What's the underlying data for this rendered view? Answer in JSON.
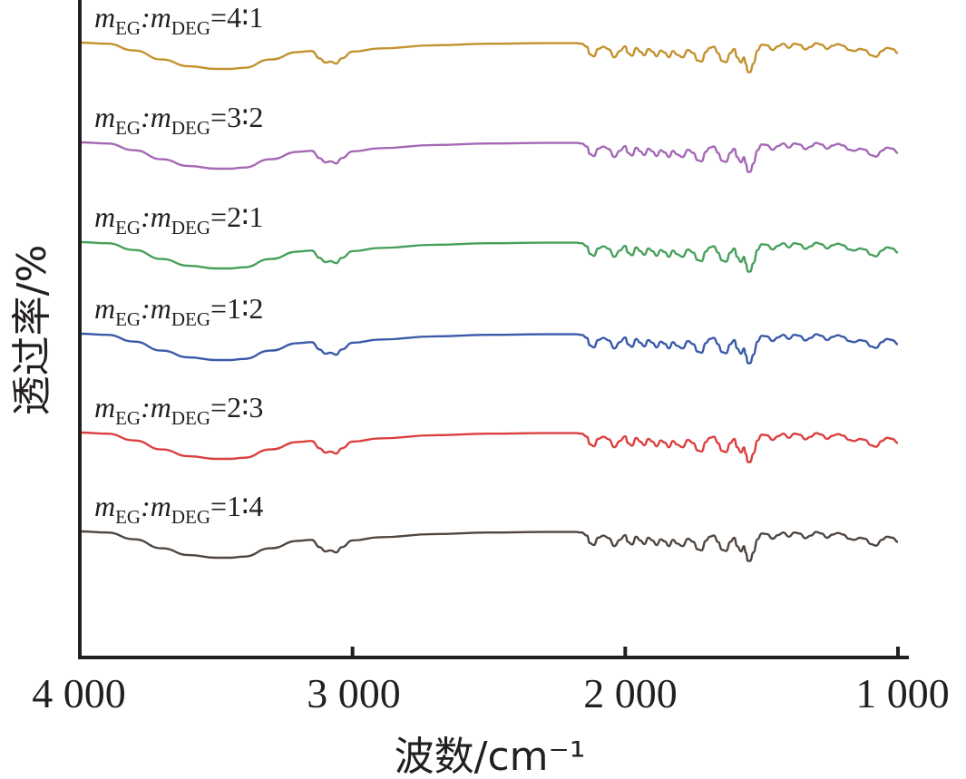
{
  "chart_data": {
    "type": "line",
    "xlabel": "波数/cm⁻¹",
    "ylabel": "透过率/%",
    "xlim": [
      4000,
      1000
    ],
    "x_reversed": true,
    "xticks": [
      4000,
      3000,
      2000,
      1000
    ],
    "xtick_labels": [
      "4 000",
      "3 000",
      "2 000",
      "1 000"
    ],
    "y_ticks_shown": false,
    "grid": false,
    "legend": "inline labels above each curve",
    "stacked_offset": true,
    "series": [
      {
        "name": "mEG:mDEG=4:1",
        "label_parts": {
          "m1": "m",
          "s1": "EG",
          "m2": ":m",
          "s2": "DEG",
          "ratio": "=4∶1"
        },
        "color": "#c3922e"
      },
      {
        "name": "mEG:mDEG=3:2",
        "label_parts": {
          "m1": "m",
          "s1": "EG",
          "m2": ":m",
          "s2": "DEG",
          "ratio": "=3∶2"
        },
        "color": "#a468b5"
      },
      {
        "name": "mEG:mDEG=2:1",
        "label_parts": {
          "m1": "m",
          "s1": "EG",
          "m2": ":m",
          "s2": "DEG",
          "ratio": "=2∶1"
        },
        "color": "#47a05a"
      },
      {
        "name": "mEG:mDEG=1:2",
        "label_parts": {
          "m1": "m",
          "s1": "EG",
          "m2": ":m",
          "s2": "DEG",
          "ratio": "=1∶2"
        },
        "color": "#3a5aa8"
      },
      {
        "name": "mEG:mDEG=2:3",
        "label_parts": {
          "m1": "m",
          "s1": "EG",
          "m2": ":m",
          "s2": "DEG",
          "ratio": "=2∶3"
        },
        "color": "#db3f3e"
      },
      {
        "name": "mEG:mDEG=1:4",
        "label_parts": {
          "m1": "m",
          "s1": "EG",
          "m2": ":m",
          "s2": "DEG",
          "ratio": "=1∶4"
        },
        "color": "#4f4640"
      }
    ],
    "spectrum_x": [
      4000,
      3900,
      3800,
      3700,
      3600,
      3500,
      3450,
      3400,
      3300,
      3200,
      3150,
      3120,
      3100,
      3080,
      3060,
      3040,
      3000,
      2900,
      2700,
      2500,
      2300,
      2180,
      2160,
      2140,
      2130,
      2115,
      2100,
      2080,
      2060,
      2040,
      2020,
      2000,
      1990,
      1975,
      1960,
      1945,
      1930,
      1915,
      1900,
      1885,
      1870,
      1855,
      1840,
      1825,
      1810,
      1790,
      1770,
      1750,
      1735,
      1720,
      1705,
      1690,
      1675,
      1660,
      1645,
      1630,
      1615,
      1600,
      1590,
      1575,
      1565,
      1558,
      1550,
      1542,
      1530,
      1515,
      1500,
      1480,
      1460,
      1440,
      1420,
      1400,
      1380,
      1360,
      1340,
      1320,
      1300,
      1280,
      1260,
      1240,
      1220,
      1200,
      1180,
      1160,
      1140,
      1120,
      1100,
      1080,
      1060,
      1040,
      1020,
      1000
    ],
    "spectrum_relative_transmittance": [
      1.0,
      0.98,
      0.85,
      0.68,
      0.55,
      0.5,
      0.5,
      0.52,
      0.68,
      0.82,
      0.84,
      0.7,
      0.62,
      0.64,
      0.6,
      0.7,
      0.83,
      0.89,
      0.95,
      0.98,
      0.99,
      0.99,
      0.98,
      0.92,
      0.78,
      0.74,
      0.88,
      0.92,
      0.87,
      0.72,
      0.84,
      0.93,
      0.8,
      0.75,
      0.9,
      0.83,
      0.76,
      0.88,
      0.83,
      0.74,
      0.85,
      0.81,
      0.72,
      0.84,
      0.77,
      0.72,
      0.86,
      0.8,
      0.66,
      0.64,
      0.82,
      0.9,
      0.92,
      0.8,
      0.65,
      0.63,
      0.8,
      0.88,
      0.72,
      0.62,
      0.72,
      0.6,
      0.44,
      0.44,
      0.6,
      0.85,
      0.96,
      0.95,
      0.86,
      0.93,
      0.98,
      0.9,
      0.98,
      0.96,
      0.87,
      0.92,
      0.99,
      0.96,
      0.88,
      0.94,
      0.97,
      0.94,
      0.86,
      0.84,
      0.88,
      0.86,
      0.76,
      0.73,
      0.84,
      0.9,
      0.88,
      0.8
    ]
  }
}
